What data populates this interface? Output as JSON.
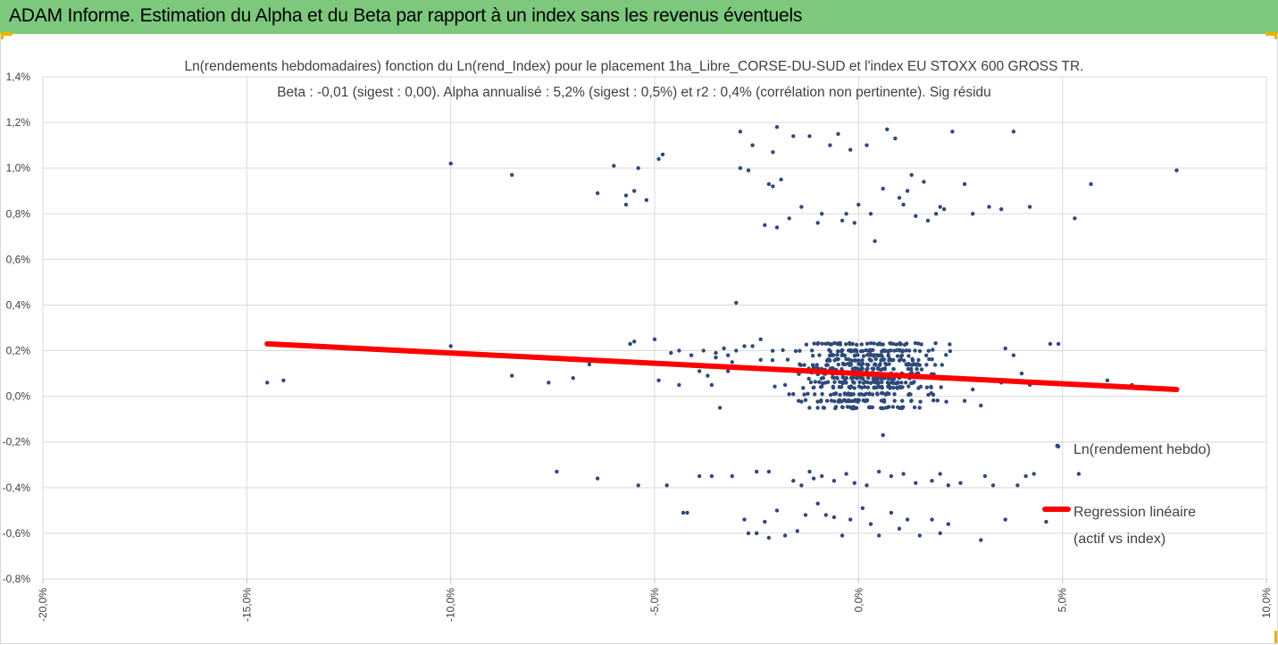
{
  "header": {
    "title": "ADAM Informe. Estimation du Alpha et du Beta par rapport à un index sans les revenus éventuels",
    "bg_color": "#7dc87d",
    "accent_color": "#e8b400"
  },
  "chart_data": {
    "type": "scatter",
    "title": "Ln(rendements hebdomadaires) fonction du Ln(rend_Index) pour le placement 1ha_Libre_CORSE-DU-SUD et l'index EU STOXX 600 GROSS TR.",
    "subtitle": "Beta : -0,01 (sigest : 0,00). Alpha annualisé : 5,2% (sigest : 0,5%) et r2 : 0,4% (corrélation non pertinente). Sig résidu",
    "xlabel": "",
    "ylabel": "",
    "xlim": [
      -0.2,
      0.1
    ],
    "ylim": [
      -0.008,
      0.014
    ],
    "x_ticks": [
      "-20,0%",
      "-15,0%",
      "-10,0%",
      "-5,0%",
      "0,0%",
      "5,0%",
      "10,0%"
    ],
    "y_ticks": [
      "-0,8%",
      "-0,6%",
      "-0,4%",
      "-0,2%",
      "0,0%",
      "0,2%",
      "0,4%",
      "0,6%",
      "0,8%",
      "1,0%",
      "1,2%",
      "1,4%"
    ],
    "grid": true,
    "legend_position": "right",
    "series": [
      {
        "name": "Ln(rendement hebdo)",
        "kind": "scatter",
        "color": "#2e4a7a",
        "points": [
          [
            -0.145,
            0.0006
          ],
          [
            -0.141,
            0.0007
          ],
          [
            -0.1,
            0.0102
          ],
          [
            -0.1,
            0.0022
          ],
          [
            -0.085,
            0.0097
          ],
          [
            -0.085,
            0.0009
          ],
          [
            -0.076,
            0.0006
          ],
          [
            -0.074,
            -0.0033
          ],
          [
            -0.07,
            0.0008
          ],
          [
            -0.066,
            0.0014
          ],
          [
            -0.065,
            0.0016
          ],
          [
            -0.064,
            0.0089
          ],
          [
            -0.064,
            -0.0036
          ],
          [
            -0.06,
            0.0101
          ],
          [
            -0.057,
            0.0084
          ],
          [
            -0.057,
            0.0088
          ],
          [
            -0.056,
            0.0023
          ],
          [
            -0.055,
            0.0024
          ],
          [
            -0.055,
            0.009
          ],
          [
            -0.054,
            -0.0039
          ],
          [
            -0.054,
            0.01
          ],
          [
            -0.052,
            0.0086
          ],
          [
            -0.05,
            0.0025
          ],
          [
            -0.049,
            0.0104
          ],
          [
            -0.049,
            0.0007
          ],
          [
            -0.048,
            0.0106
          ],
          [
            -0.047,
            -0.0039
          ],
          [
            -0.044,
            0.002
          ],
          [
            -0.044,
            0.0005
          ],
          [
            -0.043,
            -0.0051
          ],
          [
            -0.041,
            0.0018
          ],
          [
            -0.04,
            0.0014
          ],
          [
            -0.039,
            0.0011
          ],
          [
            -0.039,
            -0.0035
          ],
          [
            -0.038,
            0.002
          ],
          [
            -0.037,
            0.0009
          ],
          [
            -0.036,
            0.0005
          ],
          [
            -0.036,
            -0.0035
          ],
          [
            -0.035,
            0.0019
          ],
          [
            -0.035,
            0.0017
          ],
          [
            -0.034,
            0.0013
          ],
          [
            -0.034,
            -0.0005
          ],
          [
            -0.033,
            0.0021
          ],
          [
            -0.032,
            0.0011
          ],
          [
            -0.031,
            0.0015
          ],
          [
            -0.031,
            -0.0035
          ],
          [
            -0.03,
            0.0041
          ],
          [
            -0.03,
            0.002
          ],
          [
            -0.029,
            0.0116
          ],
          [
            -0.029,
            0.01
          ],
          [
            -0.028,
            0.0022
          ],
          [
            -0.028,
            -0.0054
          ],
          [
            -0.027,
            -0.006
          ],
          [
            -0.027,
            0.0099
          ],
          [
            -0.026,
            0.0022
          ],
          [
            -0.026,
            0.011
          ],
          [
            -0.025,
            -0.0033
          ],
          [
            -0.025,
            -0.006
          ],
          [
            -0.024,
            0.0025
          ],
          [
            -0.023,
            0.0075
          ],
          [
            -0.023,
            -0.0055
          ],
          [
            -0.022,
            -0.0033
          ],
          [
            -0.022,
            0.0093
          ],
          [
            -0.022,
            -0.0062
          ],
          [
            -0.021,
            0.0107
          ],
          [
            -0.021,
            0.0092
          ],
          [
            -0.02,
            0.0118
          ],
          [
            -0.02,
            0.0074
          ],
          [
            -0.02,
            -0.005
          ],
          [
            -0.019,
            0.0095
          ],
          [
            -0.018,
            -0.0061
          ],
          [
            -0.017,
            0.0078
          ],
          [
            -0.016,
            0.0114
          ],
          [
            -0.016,
            -0.0037
          ],
          [
            -0.015,
            -0.0059
          ],
          [
            -0.014,
            0.0083
          ],
          [
            -0.013,
            -0.0052
          ],
          [
            -0.012,
            0.0114
          ],
          [
            -0.011,
            -0.0036
          ],
          [
            -0.01,
            0.0076
          ],
          [
            -0.01,
            -0.0047
          ],
          [
            -0.009,
            0.008
          ],
          [
            -0.008,
            -0.0052
          ],
          [
            -0.007,
            0.011
          ],
          [
            -0.006,
            -0.0053
          ],
          [
            -0.005,
            0.0115
          ],
          [
            -0.004,
            0.0077
          ],
          [
            -0.004,
            -0.0061
          ],
          [
            -0.003,
            0.008
          ],
          [
            -0.002,
            0.0108
          ],
          [
            -0.002,
            -0.0054
          ],
          [
            -0.001,
            0.0076
          ],
          [
            0.0,
            0.0084
          ],
          [
            0.001,
            -0.0049
          ],
          [
            0.002,
            0.011
          ],
          [
            0.003,
            0.008
          ],
          [
            0.003,
            -0.0056
          ],
          [
            0.004,
            0.0068
          ],
          [
            0.005,
            -0.0061
          ],
          [
            0.006,
            0.0091
          ],
          [
            0.007,
            0.0117
          ],
          [
            0.008,
            -0.0051
          ],
          [
            0.009,
            0.0113
          ],
          [
            0.01,
            0.0087
          ],
          [
            0.01,
            -0.0058
          ],
          [
            0.011,
            0.0084
          ],
          [
            0.012,
            0.009
          ],
          [
            0.012,
            -0.0054
          ],
          [
            0.013,
            0.0097
          ],
          [
            0.014,
            0.0079
          ],
          [
            0.015,
            -0.0061
          ],
          [
            0.016,
            0.0094
          ],
          [
            0.017,
            0.0077
          ],
          [
            0.018,
            -0.0054
          ],
          [
            0.019,
            0.008
          ],
          [
            0.02,
            0.0083
          ],
          [
            0.02,
            -0.006
          ],
          [
            0.021,
            0.0082
          ],
          [
            0.022,
            -0.0056
          ],
          [
            0.023,
            0.0116
          ],
          [
            0.026,
            0.0093
          ],
          [
            0.028,
            0.008
          ],
          [
            0.03,
            -0.0063
          ],
          [
            0.032,
            0.0083
          ],
          [
            0.035,
            0.0082
          ],
          [
            0.038,
            0.0116
          ],
          [
            0.042,
            0.0083
          ],
          [
            0.046,
            -0.0055
          ],
          [
            0.049,
            -0.0022
          ],
          [
            0.053,
            0.0078
          ],
          [
            0.054,
            -0.0034
          ],
          [
            0.057,
            0.0093
          ],
          [
            0.078,
            0.0099
          ],
          [
            0.006,
            -0.0017
          ],
          [
            0.047,
            0.0023
          ],
          [
            0.049,
            0.0023
          ],
          [
            0.061,
            0.0007
          ],
          [
            0.067,
            0.0005
          ],
          [
            0.057,
            0.0005
          ],
          [
            0.042,
            0.0005
          ],
          [
            0.04,
            0.001
          ],
          [
            0.038,
            0.0018
          ],
          [
            0.036,
            0.0021
          ],
          [
            0.035,
            0.0006
          ],
          [
            -0.056,
            0.0023
          ],
          [
            -0.042,
            -0.0051
          ],
          [
            -0.046,
            0.0019
          ],
          [
            -0.032,
            0.0018
          ],
          [
            -0.026,
            0.0012
          ],
          [
            -0.024,
            0.0016
          ],
          [
            -0.018,
            0.0005
          ],
          [
            -0.016,
            0.0001
          ],
          [
            0.026,
            -0.0002
          ],
          [
            0.028,
            0.0003
          ],
          [
            0.03,
            -0.0004
          ],
          [
            0.022,
            -0.0039
          ],
          [
            0.018,
            -0.0037
          ],
          [
            0.014,
            -0.0038
          ],
          [
            0.011,
            -0.0034
          ],
          [
            0.008,
            -0.0035
          ],
          [
            0.005,
            -0.0033
          ],
          [
            0.002,
            -0.0039
          ],
          [
            -0.001,
            -0.0038
          ],
          [
            -0.003,
            -0.0034
          ],
          [
            -0.006,
            -0.0037
          ],
          [
            -0.009,
            -0.0035
          ],
          [
            -0.012,
            -0.0033
          ],
          [
            -0.014,
            -0.0039
          ],
          [
            0.031,
            -0.0035
          ],
          [
            0.033,
            -0.0039
          ],
          [
            0.039,
            -0.0039
          ],
          [
            0.041,
            -0.0035
          ],
          [
            0.043,
            -0.0034
          ],
          [
            0.036,
            -0.0054
          ],
          [
            0.025,
            -0.0038
          ],
          [
            0.02,
            -0.0034
          ]
        ]
      },
      {
        "name": "Regression linéaire (actif vs index)",
        "kind": "line",
        "color": "#ff0000",
        "points": [
          [
            -0.145,
            0.0023
          ],
          [
            0.078,
            0.0003
          ]
        ]
      }
    ],
    "cluster": {
      "x_range": [
        -0.05,
        0.045
      ],
      "y_levels": [
        0.0023,
        0.002,
        0.0018,
        0.0016,
        0.0014,
        0.0012,
        0.001,
        0.0008,
        0.0006,
        0.0004,
        0.0001,
        -0.0002,
        -0.0005
      ],
      "y_center": 0.0009
    },
    "legend": {
      "scatter_label": "Ln(rendement hebdo)",
      "line_label_1": "Regression linéaire",
      "line_label_2": "(actif vs index)"
    }
  }
}
